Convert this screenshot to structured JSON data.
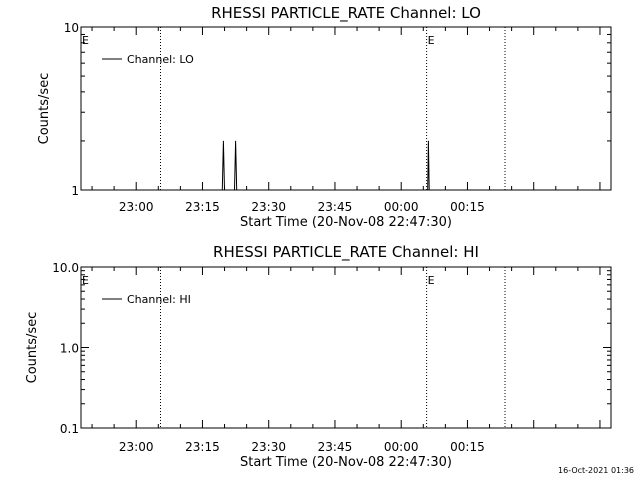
{
  "timestamp": "16-Oct-2021 01:36",
  "chart_data": [
    {
      "type": "line",
      "title": "RHESSI PARTICLE_RATE Channel: LO",
      "xlabel": "Start Time (20-Nov-08 22:47:30)",
      "ylabel": "Counts/sec",
      "y_scale": "log",
      "ylim": [
        1,
        10
      ],
      "y_ticks": [
        "10",
        "1"
      ],
      "x_ticks": [
        "23:00",
        "23:15",
        "23:30",
        "23:45",
        "00:00",
        "00:15"
      ],
      "legend": "top-left",
      "series": [
        {
          "name": "Channel: LO",
          "points": [
            {
              "t": "23:19:30",
              "v": 1
            },
            {
              "t": "23:19:45",
              "v": 2
            },
            {
              "t": "23:20:00",
              "v": 1
            },
            {
              "t": "23:22:15",
              "v": 1
            },
            {
              "t": "23:22:30",
              "v": 2
            },
            {
              "t": "23:22:45",
              "v": 1
            },
            {
              "t": "00:06:00",
              "v": 1
            },
            {
              "t": "00:06:10",
              "v": 2
            },
            {
              "t": "00:06:20",
              "v": 1
            }
          ]
        }
      ],
      "markers": [
        {
          "label": "E",
          "t": "22:47:30"
        },
        {
          "label": "",
          "t": "23:05:30"
        },
        {
          "label": "E",
          "t": "00:05:45"
        },
        {
          "label": "",
          "t": "00:23:30"
        }
      ]
    },
    {
      "type": "line",
      "title": "RHESSI PARTICLE_RATE Channel: HI",
      "xlabel": "Start Time (20-Nov-08 22:47:30)",
      "ylabel": "Counts/sec",
      "y_scale": "log",
      "ylim": [
        0.1,
        10
      ],
      "y_ticks": [
        "10.0",
        "1.0",
        "0.1"
      ],
      "x_ticks": [
        "23:00",
        "23:15",
        "23:30",
        "23:45",
        "00:00",
        "00:15"
      ],
      "legend": "top-left",
      "series": [
        {
          "name": "Channel: HI",
          "points": []
        }
      ],
      "markers": [
        {
          "label": "E",
          "t": "22:47:30"
        },
        {
          "label": "",
          "t": "23:05:30"
        },
        {
          "label": "E",
          "t": "00:05:45"
        },
        {
          "label": "",
          "t": "00:23:30"
        }
      ]
    }
  ]
}
